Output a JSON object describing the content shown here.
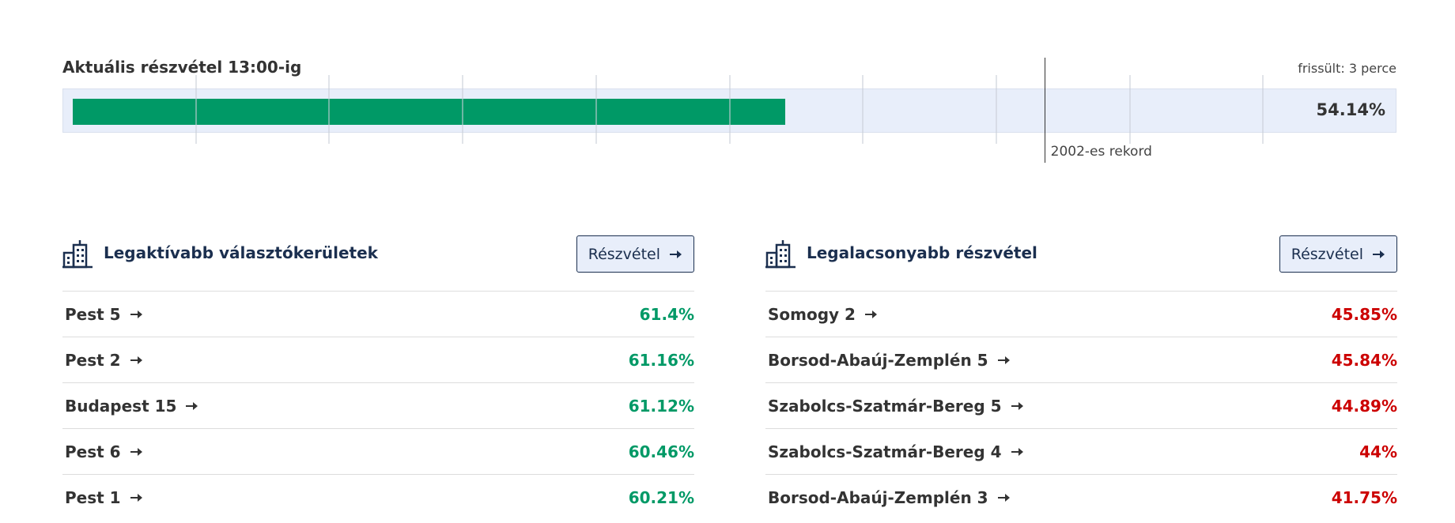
{
  "header": {
    "title": "Aktuális részvétel 13:00-ig",
    "updated": "frissült: 3 perce"
  },
  "turnout": {
    "value": 54.14,
    "label": "54.14%",
    "scale_min": 0,
    "scale_max": 100,
    "gridlines": [
      10,
      20,
      30,
      40,
      50,
      60,
      70,
      80,
      90
    ],
    "record": {
      "value": 73.6,
      "label": "2002-es rekord"
    }
  },
  "panels": [
    {
      "title": "Legaktívabb választókerületek",
      "button": "Részvétel",
      "color": "#009966",
      "rows": [
        {
          "name": "Pest 5",
          "value": 61.4,
          "label": "61.4%"
        },
        {
          "name": "Pest 2",
          "value": 61.16,
          "label": "61.16%"
        },
        {
          "name": "Budapest 15",
          "value": 61.12,
          "label": "61.12%"
        },
        {
          "name": "Pest 6",
          "value": 60.46,
          "label": "60.46%"
        },
        {
          "name": "Pest 1",
          "value": 60.21,
          "label": "60.21%"
        }
      ]
    },
    {
      "title": "Legalacsonyabb részvétel",
      "button": "Részvétel",
      "color": "#cc0000",
      "rows": [
        {
          "name": "Somogy 2",
          "value": 45.85,
          "label": "45.85%"
        },
        {
          "name": "Borsod-Abaúj-Zemplén 5",
          "value": 45.84,
          "label": "45.84%"
        },
        {
          "name": "Szabolcs-Szatmár-Bereg 5",
          "value": 44.89,
          "label": "44.89%"
        },
        {
          "name": "Szabolcs-Szatmár-Bereg 4",
          "value": 44,
          "label": "44%"
        },
        {
          "name": "Borsod-Abaúj-Zemplén 3",
          "value": 41.75,
          "label": "41.75%"
        }
      ]
    }
  ]
}
